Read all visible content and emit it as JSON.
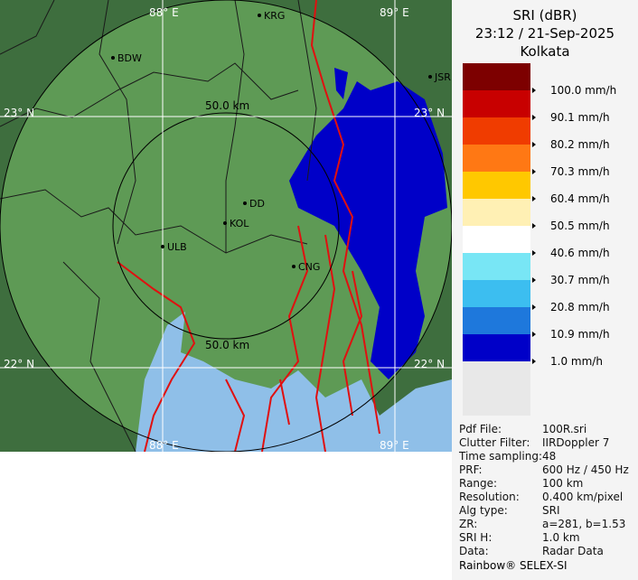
{
  "map": {
    "header": {
      "product": "SRI (dBR)",
      "datetime": "23:12 / 21-Sep-2025",
      "station": "Kolkata"
    },
    "grid_labels": [
      "88° E",
      "89° E",
      "23° N",
      "22° N"
    ],
    "range_label": "50.0 km",
    "places": [
      "KRG",
      "BDW",
      "JSR",
      "DD",
      "KOL",
      "ULB",
      "CNG"
    ],
    "legend": [
      {
        "label": "100.0 mm/h",
        "color": "#c80000"
      },
      {
        "label": "90.1 mm/h",
        "color": "#f03c00"
      },
      {
        "label": "80.2 mm/h",
        "color": "#ff7814"
      },
      {
        "label": "70.3 mm/h",
        "color": "#ffc800"
      },
      {
        "label": "60.4 mm/h",
        "color": "#fff0b4"
      },
      {
        "label": "50.5 mm/h",
        "color": "#ffffff"
      },
      {
        "label": "40.6 mm/h",
        "color": "#78e6f5"
      },
      {
        "label": "30.7 mm/h",
        "color": "#3cbef0"
      },
      {
        "label": "20.8 mm/h",
        "color": "#1e78dc"
      },
      {
        "label": "10.9 mm/h",
        "color": "#0000c8"
      },
      {
        "label": "1.0 mm/h",
        "color": "#0000c8"
      }
    ],
    "top_color": "#7d0000",
    "info": [
      [
        "Pdf File:",
        "100R.sri"
      ],
      [
        "Clutter Filter:",
        "IIRDoppler 7"
      ],
      [
        "Time sampling:",
        "48"
      ],
      [
        "PRF:",
        "600 Hz / 450 Hz"
      ],
      [
        "Range:",
        "100 km"
      ],
      [
        "Resolution:",
        "0.400 km/pixel"
      ],
      [
        "Alg type:",
        "SRI"
      ],
      [
        "ZR:",
        "a=281, b=1.53"
      ],
      [
        "SRI H:",
        "1.0 km"
      ],
      [
        "Data:",
        "Radar Data"
      ]
    ],
    "footer": "Rainbow® SELEX-SI"
  }
}
